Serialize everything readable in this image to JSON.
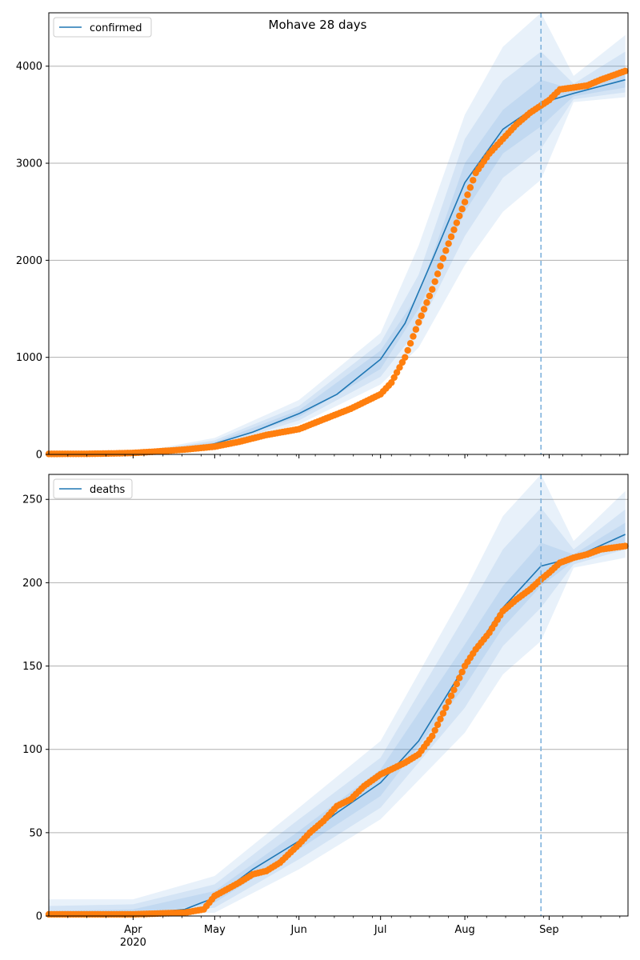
{
  "chart_data": [
    {
      "type": "line",
      "title": "Mohave 28 days",
      "series_name": "confirmed",
      "ylim": [
        0,
        4550
      ],
      "yticks": [
        0,
        1000,
        2000,
        3000,
        4000
      ],
      "grid": "y",
      "legend": "top-left",
      "forecast_start": "2020-08-29",
      "model": [
        [
          "2020-03-01",
          0
        ],
        [
          "2020-04-01",
          5
        ],
        [
          "2020-04-15",
          30
        ],
        [
          "2020-05-01",
          110
        ],
        [
          "2020-05-15",
          230
        ],
        [
          "2020-06-01",
          420
        ],
        [
          "2020-06-15",
          620
        ],
        [
          "2020-07-01",
          980
        ],
        [
          "2020-07-10",
          1350
        ],
        [
          "2020-07-20",
          2000
        ],
        [
          "2020-08-01",
          2800
        ],
        [
          "2020-08-15",
          3350
        ],
        [
          "2020-08-29",
          3620
        ],
        [
          "2020-09-10",
          3720
        ],
        [
          "2020-09-29",
          3860
        ]
      ],
      "band_outer": {
        "lower": [
          [
            "2020-03-01",
            0
          ],
          [
            "2020-04-01",
            0
          ],
          [
            "2020-05-01",
            60
          ],
          [
            "2020-06-01",
            310
          ],
          [
            "2020-07-01",
            720
          ],
          [
            "2020-07-15",
            1100
          ],
          [
            "2020-08-01",
            1950
          ],
          [
            "2020-08-15",
            2500
          ],
          [
            "2020-08-29",
            2830
          ],
          [
            "2020-09-10",
            3630
          ],
          [
            "2020-09-29",
            3680
          ]
        ],
        "upper": [
          [
            "2020-03-01",
            10
          ],
          [
            "2020-04-01",
            15
          ],
          [
            "2020-05-01",
            170
          ],
          [
            "2020-06-01",
            560
          ],
          [
            "2020-07-01",
            1250
          ],
          [
            "2020-07-15",
            2150
          ],
          [
            "2020-08-01",
            3500
          ],
          [
            "2020-08-15",
            4200
          ],
          [
            "2020-08-29",
            4550
          ],
          [
            "2020-09-10",
            3900
          ],
          [
            "2020-09-29",
            4320
          ]
        ]
      },
      "band_mid": {
        "lower": [
          [
            "2020-03-01",
            0
          ],
          [
            "2020-04-01",
            1
          ],
          [
            "2020-05-01",
            80
          ],
          [
            "2020-06-01",
            350
          ],
          [
            "2020-07-01",
            800
          ],
          [
            "2020-07-15",
            1300
          ],
          [
            "2020-08-01",
            2250
          ],
          [
            "2020-08-15",
            2850
          ],
          [
            "2020-08-29",
            3150
          ],
          [
            "2020-09-10",
            3660
          ],
          [
            "2020-09-29",
            3730
          ]
        ],
        "upper": [
          [
            "2020-03-01",
            6
          ],
          [
            "2020-04-01",
            10
          ],
          [
            "2020-05-01",
            145
          ],
          [
            "2020-06-01",
            500
          ],
          [
            "2020-07-01",
            1150
          ],
          [
            "2020-07-15",
            1850
          ],
          [
            "2020-08-01",
            3250
          ],
          [
            "2020-08-15",
            3850
          ],
          [
            "2020-08-29",
            4150
          ],
          [
            "2020-09-10",
            3820
          ],
          [
            "2020-09-29",
            4150
          ]
        ]
      },
      "band_inner": {
        "lower": [
          [
            "2020-03-01",
            0
          ],
          [
            "2020-04-01",
            2
          ],
          [
            "2020-05-01",
            95
          ],
          [
            "2020-06-01",
            385
          ],
          [
            "2020-07-01",
            880
          ],
          [
            "2020-07-15",
            1500
          ],
          [
            "2020-08-01",
            2500
          ],
          [
            "2020-08-15",
            3100
          ],
          [
            "2020-08-29",
            3380
          ],
          [
            "2020-09-10",
            3690
          ],
          [
            "2020-09-29",
            3780
          ]
        ],
        "upper": [
          [
            "2020-03-01",
            3
          ],
          [
            "2020-04-01",
            8
          ],
          [
            "2020-05-01",
            125
          ],
          [
            "2020-06-01",
            455
          ],
          [
            "2020-07-01",
            1070
          ],
          [
            "2020-07-15",
            1650
          ],
          [
            "2020-08-01",
            3000
          ],
          [
            "2020-08-15",
            3550
          ],
          [
            "2020-08-29",
            3860
          ],
          [
            "2020-09-10",
            3760
          ],
          [
            "2020-09-29",
            3980
          ]
        ]
      },
      "observed": [
        [
          "2020-03-01",
          5
        ],
        [
          "2020-03-15",
          6
        ],
        [
          "2020-03-25",
          10
        ],
        [
          "2020-04-01",
          15
        ],
        [
          "2020-04-10",
          30
        ],
        [
          "2020-04-20",
          50
        ],
        [
          "2020-05-01",
          80
        ],
        [
          "2020-05-10",
          130
        ],
        [
          "2020-05-20",
          200
        ],
        [
          "2020-06-01",
          260
        ],
        [
          "2020-06-10",
          360
        ],
        [
          "2020-06-20",
          470
        ],
        [
          "2020-07-01",
          620
        ],
        [
          "2020-07-05",
          740
        ],
        [
          "2020-07-10",
          1000
        ],
        [
          "2020-07-15",
          1360
        ],
        [
          "2020-07-20",
          1700
        ],
        [
          "2020-07-25",
          2100
        ],
        [
          "2020-08-01",
          2600
        ],
        [
          "2020-08-05",
          2900
        ],
        [
          "2020-08-10",
          3100
        ],
        [
          "2020-08-15",
          3250
        ],
        [
          "2020-08-20",
          3400
        ],
        [
          "2020-08-25",
          3520
        ],
        [
          "2020-09-01",
          3650
        ],
        [
          "2020-09-05",
          3760
        ],
        [
          "2020-09-10",
          3780
        ],
        [
          "2020-09-15",
          3800
        ],
        [
          "2020-09-20",
          3860
        ],
        [
          "2020-09-29",
          3950
        ]
      ]
    },
    {
      "type": "line",
      "title": "",
      "series_name": "deaths",
      "ylim": [
        0,
        265
      ],
      "yticks": [
        0,
        50,
        100,
        150,
        200,
        250
      ],
      "grid": "y",
      "legend": "top-left",
      "forecast_start": "2020-08-29",
      "model": [
        [
          "2020-03-01",
          0
        ],
        [
          "2020-04-01",
          1
        ],
        [
          "2020-04-20",
          4
        ],
        [
          "2020-05-01",
          11
        ],
        [
          "2020-05-15",
          28
        ],
        [
          "2020-06-01",
          45
        ],
        [
          "2020-06-15",
          62
        ],
        [
          "2020-07-01",
          80
        ],
        [
          "2020-07-15",
          105
        ],
        [
          "2020-08-01",
          150
        ],
        [
          "2020-08-15",
          185
        ],
        [
          "2020-08-29",
          210
        ],
        [
          "2020-09-10",
          215
        ],
        [
          "2020-09-29",
          229
        ]
      ],
      "band_outer": {
        "lower": [
          [
            "2020-03-01",
            0
          ],
          [
            "2020-04-01",
            0
          ],
          [
            "2020-05-01",
            2
          ],
          [
            "2020-06-01",
            28
          ],
          [
            "2020-07-01",
            58
          ],
          [
            "2020-08-01",
            110
          ],
          [
            "2020-08-15",
            145
          ],
          [
            "2020-08-29",
            165
          ],
          [
            "2020-09-10",
            209
          ],
          [
            "2020-09-29",
            215
          ]
        ],
        "upper": [
          [
            "2020-03-01",
            10
          ],
          [
            "2020-04-01",
            10
          ],
          [
            "2020-05-01",
            24
          ],
          [
            "2020-06-01",
            65
          ],
          [
            "2020-07-01",
            105
          ],
          [
            "2020-08-01",
            195
          ],
          [
            "2020-08-15",
            240
          ],
          [
            "2020-08-29",
            265
          ],
          [
            "2020-09-10",
            225
          ],
          [
            "2020-09-29",
            255
          ]
        ]
      },
      "band_mid": {
        "lower": [
          [
            "2020-03-01",
            0
          ],
          [
            "2020-04-01",
            0
          ],
          [
            "2020-05-01",
            5
          ],
          [
            "2020-06-01",
            34
          ],
          [
            "2020-07-01",
            65
          ],
          [
            "2020-08-01",
            125
          ],
          [
            "2020-08-15",
            162
          ],
          [
            "2020-08-29",
            185
          ],
          [
            "2020-09-10",
            211
          ],
          [
            "2020-09-29",
            220
          ]
        ],
        "upper": [
          [
            "2020-03-01",
            6
          ],
          [
            "2020-04-01",
            7
          ],
          [
            "2020-05-01",
            19
          ],
          [
            "2020-06-01",
            58
          ],
          [
            "2020-07-01",
            95
          ],
          [
            "2020-08-01",
            180
          ],
          [
            "2020-08-15",
            220
          ],
          [
            "2020-08-29",
            245
          ],
          [
            "2020-09-10",
            220
          ],
          [
            "2020-09-29",
            244
          ]
        ]
      },
      "band_inner": {
        "lower": [
          [
            "2020-03-01",
            0
          ],
          [
            "2020-04-01",
            0
          ],
          [
            "2020-05-01",
            8
          ],
          [
            "2020-06-01",
            40
          ],
          [
            "2020-07-01",
            72
          ],
          [
            "2020-08-01",
            138
          ],
          [
            "2020-08-15",
            173
          ],
          [
            "2020-08-29",
            198
          ],
          [
            "2020-09-10",
            213
          ],
          [
            "2020-09-29",
            224
          ]
        ],
        "upper": [
          [
            "2020-03-01",
            3
          ],
          [
            "2020-04-01",
            4
          ],
          [
            "2020-05-01",
            15
          ],
          [
            "2020-06-01",
            51
          ],
          [
            "2020-07-01",
            88
          ],
          [
            "2020-08-01",
            163
          ],
          [
            "2020-08-15",
            198
          ],
          [
            "2020-08-29",
            224
          ],
          [
            "2020-09-10",
            217
          ],
          [
            "2020-09-29",
            236
          ]
        ]
      },
      "observed": [
        [
          "2020-03-01",
          1
        ],
        [
          "2020-04-01",
          1
        ],
        [
          "2020-04-20",
          2
        ],
        [
          "2020-04-27",
          4
        ],
        [
          "2020-05-01",
          12
        ],
        [
          "2020-05-10",
          20
        ],
        [
          "2020-05-15",
          25
        ],
        [
          "2020-05-20",
          27
        ],
        [
          "2020-05-25",
          32
        ],
        [
          "2020-06-01",
          43
        ],
        [
          "2020-06-05",
          50
        ],
        [
          "2020-06-10",
          57
        ],
        [
          "2020-06-15",
          66
        ],
        [
          "2020-06-20",
          70
        ],
        [
          "2020-06-25",
          78
        ],
        [
          "2020-07-01",
          85
        ],
        [
          "2020-07-05",
          88
        ],
        [
          "2020-07-10",
          92
        ],
        [
          "2020-07-15",
          97
        ],
        [
          "2020-07-20",
          108
        ],
        [
          "2020-07-25",
          125
        ],
        [
          "2020-08-01",
          150
        ],
        [
          "2020-08-05",
          160
        ],
        [
          "2020-08-10",
          170
        ],
        [
          "2020-08-15",
          183
        ],
        [
          "2020-08-20",
          190
        ],
        [
          "2020-08-25",
          196
        ],
        [
          "2020-08-29",
          202
        ],
        [
          "2020-09-01",
          206
        ],
        [
          "2020-09-05",
          212
        ],
        [
          "2020-09-10",
          215
        ],
        [
          "2020-09-15",
          217
        ],
        [
          "2020-09-20",
          220
        ],
        [
          "2020-09-29",
          222
        ]
      ]
    }
  ],
  "x_axis": {
    "range": [
      "2020-03-01",
      "2020-09-30"
    ],
    "major_ticks": [
      {
        "date": "2020-04-01",
        "label": "Apr",
        "sublabel": "2020"
      },
      {
        "date": "2020-05-01",
        "label": "May",
        "sublabel": ""
      },
      {
        "date": "2020-06-01",
        "label": "Jun",
        "sublabel": ""
      },
      {
        "date": "2020-07-01",
        "label": "Jul",
        "sublabel": ""
      },
      {
        "date": "2020-08-01",
        "label": "Aug",
        "sublabel": ""
      },
      {
        "date": "2020-09-01",
        "label": "Sep",
        "sublabel": ""
      }
    ]
  },
  "colors": {
    "model_line": "#1f77b4",
    "observed": "#ff7f0e",
    "band": "#4a90d9",
    "forecast_line": "#7fb2dc",
    "grid": "#b0b0b0"
  }
}
